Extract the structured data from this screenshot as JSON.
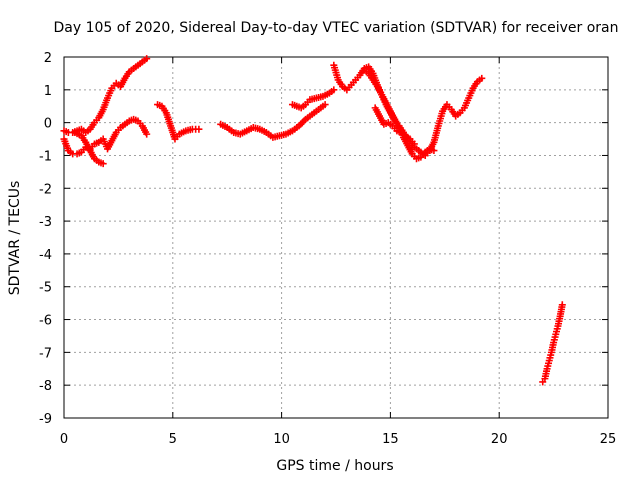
{
  "chart_data": {
    "type": "scatter",
    "title": "Day 105 of 2020, Sidereal Day-to-day VTEC variation (SDTVAR) for receiver oran",
    "xlabel": "GPS time / hours",
    "ylabel": "SDTVAR / TECUs",
    "xlim": [
      0,
      25
    ],
    "ylim": [
      -9,
      2
    ],
    "xticks": [
      0,
      5,
      10,
      15,
      20,
      25
    ],
    "yticks": [
      2,
      1,
      0,
      -1,
      -2,
      -3,
      -4,
      -5,
      -6,
      -7,
      -8,
      -9
    ],
    "grid": true,
    "legend": "none",
    "marker": "plus",
    "color": "#ff0000",
    "series": [
      {
        "x": [
          0.0,
          0.2,
          0.4,
          0.6,
          0.8,
          1.0,
          1.2,
          1.4,
          1.6,
          1.8,
          2.0,
          2.2,
          2.4,
          2.6,
          2.8,
          3.0,
          3.2,
          3.4,
          3.6,
          3.8
        ],
        "y": [
          -0.25,
          -0.3,
          -0.3,
          -0.25,
          -0.2,
          -0.3,
          -0.2,
          0.0,
          0.15,
          0.4,
          0.75,
          1.05,
          1.2,
          1.1,
          1.35,
          1.55,
          1.65,
          1.75,
          1.85,
          1.95
        ]
      },
      {
        "x": [
          0.0,
          0.2,
          0.4,
          0.6,
          0.8,
          1.0,
          1.2,
          1.4,
          1.6,
          1.8,
          2.0,
          2.2,
          2.4,
          2.6,
          2.8,
          3.0,
          3.2,
          3.4,
          3.6,
          3.8
        ],
        "y": [
          -0.5,
          -0.85,
          -0.95,
          -0.95,
          -0.9,
          -0.75,
          -0.8,
          -0.65,
          -0.6,
          -0.5,
          -0.8,
          -0.55,
          -0.3,
          -0.15,
          -0.05,
          0.05,
          0.1,
          0.05,
          -0.1,
          -0.35
        ]
      },
      {
        "x": [
          0.5,
          0.8,
          1.0,
          1.2,
          1.4,
          1.6,
          1.8
        ],
        "y": [
          -0.3,
          -0.4,
          -0.6,
          -0.85,
          -1.1,
          -1.2,
          -1.25
        ]
      },
      {
        "x": [
          4.3,
          4.5,
          4.7,
          4.9,
          5.1,
          5.3,
          5.6,
          5.9,
          6.2
        ],
        "y": [
          0.55,
          0.5,
          0.3,
          -0.1,
          -0.5,
          -0.35,
          -0.25,
          -0.2,
          -0.2
        ]
      },
      {
        "x": [
          7.2,
          7.5,
          7.8,
          8.1,
          8.4,
          8.7,
          9.0,
          9.3,
          9.6,
          9.9,
          10.2,
          10.5,
          10.8,
          11.1,
          11.4,
          11.7,
          12.0
        ],
        "y": [
          -0.05,
          -0.15,
          -0.3,
          -0.35,
          -0.25,
          -0.15,
          -0.2,
          -0.3,
          -0.45,
          -0.4,
          -0.35,
          -0.25,
          -0.1,
          0.1,
          0.25,
          0.4,
          0.55
        ]
      },
      {
        "x": [
          10.5,
          10.7,
          10.9,
          11.1,
          11.3,
          11.6,
          11.9,
          12.2,
          12.4
        ],
        "y": [
          0.55,
          0.5,
          0.45,
          0.55,
          0.7,
          0.75,
          0.8,
          0.9,
          1.0
        ]
      },
      {
        "x": [
          12.4,
          12.6,
          12.8,
          13.0,
          13.2,
          13.4,
          13.6,
          13.8,
          14.0,
          14.2,
          14.4,
          14.6,
          14.8,
          15.0,
          15.2,
          15.4,
          15.6,
          15.8,
          16.0,
          16.2,
          16.4,
          16.6,
          16.8,
          17.0,
          17.2,
          17.4,
          17.6,
          17.8,
          18.0,
          18.2,
          18.4,
          18.6,
          18.8,
          19.0,
          19.2
        ],
        "y": [
          1.75,
          1.3,
          1.1,
          1.0,
          1.15,
          1.3,
          1.45,
          1.65,
          1.7,
          1.5,
          1.15,
          0.85,
          0.55,
          0.3,
          0.05,
          -0.1,
          -0.3,
          -0.55,
          -0.7,
          -0.8,
          -0.9,
          -1.0,
          -0.85,
          -0.6,
          -0.1,
          0.35,
          0.55,
          0.4,
          0.2,
          0.3,
          0.45,
          0.75,
          1.05,
          1.25,
          1.35
        ]
      },
      {
        "x": [
          13.8,
          14.0,
          14.2,
          14.4,
          14.6,
          14.8,
          15.0,
          15.2,
          15.4,
          15.6,
          15.8,
          16.0,
          16.2,
          16.4,
          16.6,
          16.8,
          17.0
        ],
        "y": [
          1.6,
          1.5,
          1.3,
          1.1,
          0.85,
          0.6,
          0.35,
          0.1,
          -0.15,
          -0.45,
          -0.7,
          -0.95,
          -1.1,
          -1.05,
          -0.9,
          -0.8,
          -0.85
        ]
      },
      {
        "x": [
          14.3,
          14.5,
          14.7,
          14.9,
          15.1,
          15.3,
          15.5,
          15.7,
          15.9,
          16.1
        ],
        "y": [
          0.45,
          0.2,
          -0.05,
          0.0,
          -0.1,
          -0.25,
          -0.3,
          -0.4,
          -0.5,
          -0.65
        ]
      },
      {
        "x": [
          22.0,
          22.1,
          22.2,
          22.3,
          22.4,
          22.5,
          22.6,
          22.7,
          22.8,
          22.9
        ],
        "y": [
          -7.9,
          -7.8,
          -7.5,
          -7.25,
          -7.0,
          -6.7,
          -6.45,
          -6.2,
          -5.9,
          -5.55
        ]
      }
    ]
  }
}
